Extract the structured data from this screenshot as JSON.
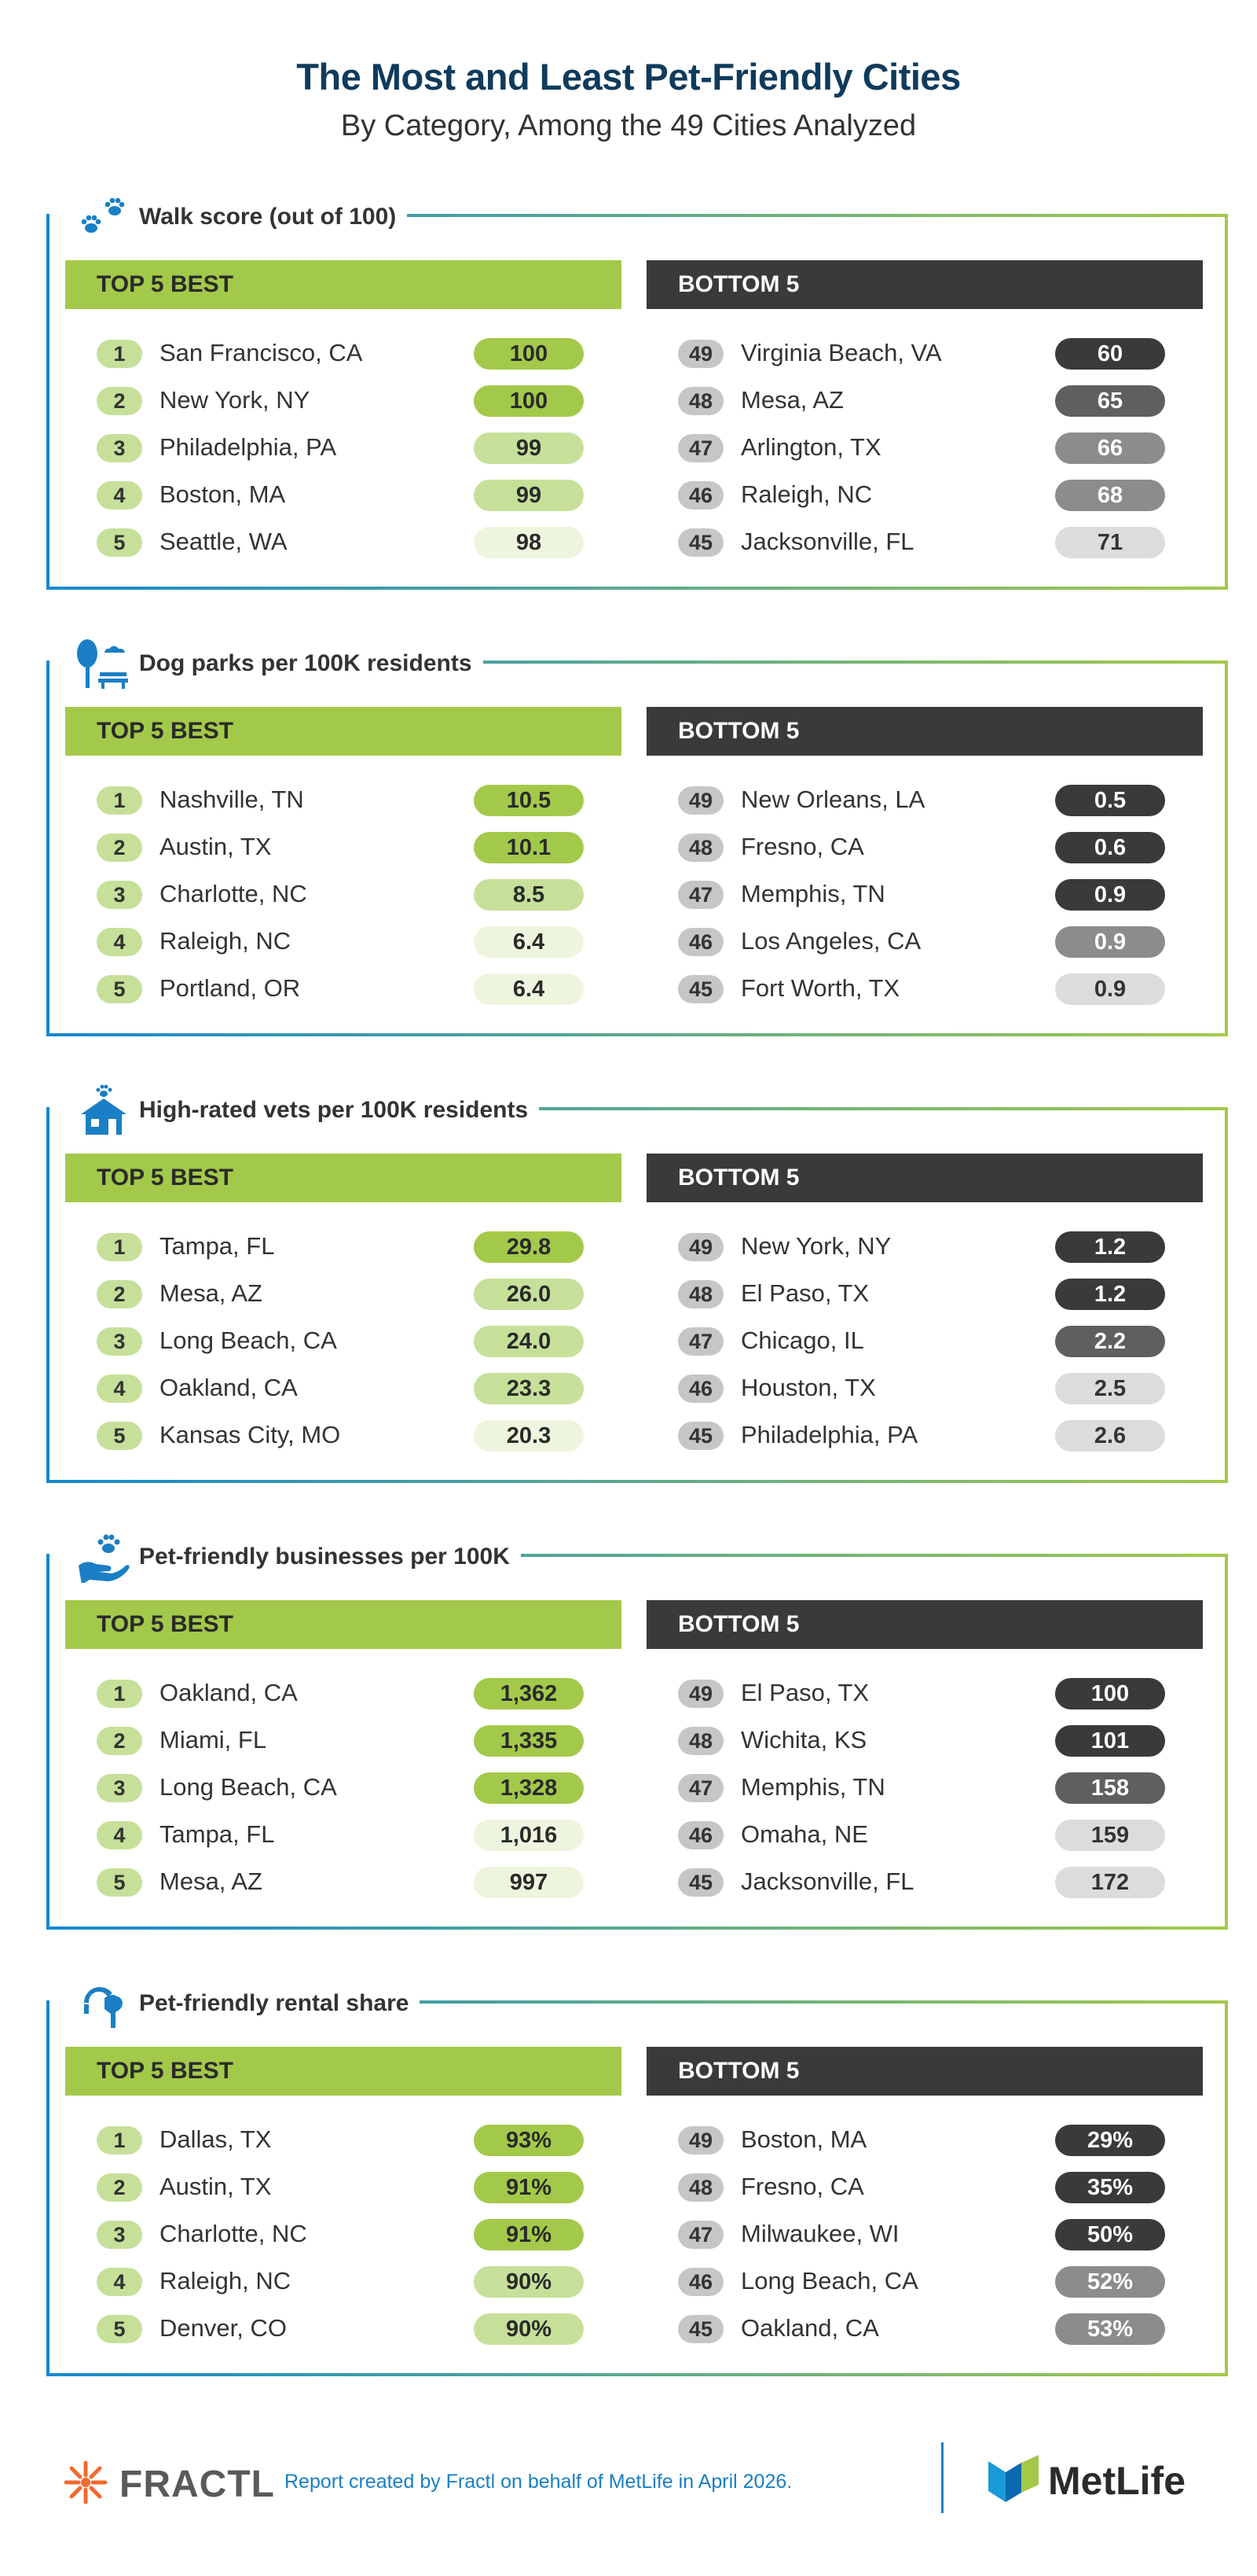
{
  "title": "The Most and Least Pet-Friendly Cities",
  "subtitle": "By Category, Among the 49 Cities Analyzed",
  "best_header": "TOP 5 BEST",
  "worst_header": "BOTTOM 5",
  "colors": {
    "best_strong": "#a3c94a",
    "best_mid": "#c6e09a",
    "best_light": "#eef5de",
    "worst_strong": "#3a3a3a",
    "worst_mid": "#5f5f5f",
    "worst_gray": "#8c8c8c",
    "worst_light": "#dcdcdc",
    "title": "#0f3b5c",
    "accent_blue": "#1a7fc4"
  },
  "sections": [
    {
      "title": "Walk score (out of 100)",
      "icon": "paw-prints-icon",
      "best": [
        {
          "rank": "1",
          "city": "San Francisco, CA",
          "value": "100",
          "shade": "best_strong"
        },
        {
          "rank": "2",
          "city": "New York, NY",
          "value": "100",
          "shade": "best_strong"
        },
        {
          "rank": "3",
          "city": "Philadelphia, PA",
          "value": "99",
          "shade": "best_mid"
        },
        {
          "rank": "4",
          "city": "Boston, MA",
          "value": "99",
          "shade": "best_mid"
        },
        {
          "rank": "5",
          "city": "Seattle, WA",
          "value": "98",
          "shade": "best_light"
        }
      ],
      "worst": [
        {
          "rank": "49",
          "city": "Virginia Beach, VA",
          "value": "60",
          "shade": "worst_strong"
        },
        {
          "rank": "48",
          "city": "Mesa, AZ",
          "value": "65",
          "shade": "worst_mid"
        },
        {
          "rank": "47",
          "city": "Arlington, TX",
          "value": "66",
          "shade": "worst_gray"
        },
        {
          "rank": "46",
          "city": "Raleigh, NC",
          "value": "68",
          "shade": "worst_gray"
        },
        {
          "rank": "45",
          "city": "Jacksonville, FL",
          "value": "71",
          "shade": "worst_light"
        }
      ]
    },
    {
      "title": "Dog parks per 100K residents",
      "icon": "park-tree-bench-icon",
      "best": [
        {
          "rank": "1",
          "city": "Nashville, TN",
          "value": "10.5",
          "shade": "best_strong"
        },
        {
          "rank": "2",
          "city": "Austin, TX",
          "value": "10.1",
          "shade": "best_strong"
        },
        {
          "rank": "3",
          "city": "Charlotte, NC",
          "value": "8.5",
          "shade": "best_mid"
        },
        {
          "rank": "4",
          "city": "Raleigh, NC",
          "value": "6.4",
          "shade": "best_light"
        },
        {
          "rank": "5",
          "city": "Portland, OR",
          "value": "6.4",
          "shade": "best_light"
        }
      ],
      "worst": [
        {
          "rank": "49",
          "city": "New Orleans, LA",
          "value": "0.5",
          "shade": "worst_strong"
        },
        {
          "rank": "48",
          "city": "Fresno, CA",
          "value": "0.6",
          "shade": "worst_strong"
        },
        {
          "rank": "47",
          "city": "Memphis, TN",
          "value": "0.9",
          "shade": "worst_strong"
        },
        {
          "rank": "46",
          "city": "Los Angeles, CA",
          "value": "0.9",
          "shade": "worst_gray"
        },
        {
          "rank": "45",
          "city": "Fort Worth, TX",
          "value": "0.9",
          "shade": "worst_light"
        }
      ]
    },
    {
      "title": "High-rated vets per 100K residents",
      "icon": "vet-clinic-icon",
      "best": [
        {
          "rank": "1",
          "city": "Tampa, FL",
          "value": "29.8",
          "shade": "best_strong"
        },
        {
          "rank": "2",
          "city": "Mesa, AZ",
          "value": "26.0",
          "shade": "best_mid"
        },
        {
          "rank": "3",
          "city": "Long Beach, CA",
          "value": "24.0",
          "shade": "best_mid"
        },
        {
          "rank": "4",
          "city": "Oakland, CA",
          "value": "23.3",
          "shade": "best_mid"
        },
        {
          "rank": "5",
          "city": "Kansas City, MO",
          "value": "20.3",
          "shade": "best_light"
        }
      ],
      "worst": [
        {
          "rank": "49",
          "city": "New York, NY",
          "value": "1.2",
          "shade": "worst_strong"
        },
        {
          "rank": "48",
          "city": "El Paso, TX",
          "value": "1.2",
          "shade": "worst_strong"
        },
        {
          "rank": "47",
          "city": "Chicago, IL",
          "value": "2.2",
          "shade": "worst_mid"
        },
        {
          "rank": "46",
          "city": "Houston, TX",
          "value": "2.5",
          "shade": "worst_light"
        },
        {
          "rank": "45",
          "city": "Philadelphia, PA",
          "value": "2.6",
          "shade": "worst_light"
        }
      ]
    },
    {
      "title": "Pet-friendly businesses per 100K",
      "icon": "hand-paw-icon",
      "best": [
        {
          "rank": "1",
          "city": "Oakland, CA",
          "value": "1,362",
          "shade": "best_strong"
        },
        {
          "rank": "2",
          "city": "Miami, FL",
          "value": "1,335",
          "shade": "best_strong"
        },
        {
          "rank": "3",
          "city": "Long Beach, CA",
          "value": "1,328",
          "shade": "best_strong"
        },
        {
          "rank": "4",
          "city": "Tampa, FL",
          "value": "1,016",
          "shade": "best_light"
        },
        {
          "rank": "5",
          "city": "Mesa, AZ",
          "value": "997",
          "shade": "best_light"
        }
      ],
      "worst": [
        {
          "rank": "49",
          "city": "El Paso, TX",
          "value": "100",
          "shade": "worst_strong"
        },
        {
          "rank": "48",
          "city": "Wichita, KS",
          "value": "101",
          "shade": "worst_strong"
        },
        {
          "rank": "47",
          "city": "Memphis, TN",
          "value": "158",
          "shade": "worst_mid"
        },
        {
          "rank": "46",
          "city": "Omaha, NE",
          "value": "159",
          "shade": "worst_light"
        },
        {
          "rank": "45",
          "city": "Jacksonville, FL",
          "value": "172",
          "shade": "worst_light"
        }
      ]
    },
    {
      "title": "Pet-friendly rental share",
      "icon": "person-dog-icon",
      "best": [
        {
          "rank": "1",
          "city": "Dallas, TX",
          "value": "93%",
          "shade": "best_strong"
        },
        {
          "rank": "2",
          "city": "Austin, TX",
          "value": "91%",
          "shade": "best_strong"
        },
        {
          "rank": "3",
          "city": "Charlotte, NC",
          "value": "91%",
          "shade": "best_strong"
        },
        {
          "rank": "4",
          "city": "Raleigh, NC",
          "value": "90%",
          "shade": "best_mid"
        },
        {
          "rank": "5",
          "city": "Denver, CO",
          "value": "90%",
          "shade": "best_mid"
        }
      ],
      "worst": [
        {
          "rank": "49",
          "city": "Boston, MA",
          "value": "29%",
          "shade": "worst_strong"
        },
        {
          "rank": "48",
          "city": "Fresno, CA",
          "value": "35%",
          "shade": "worst_strong"
        },
        {
          "rank": "47",
          "city": "Milwaukee, WI",
          "value": "50%",
          "shade": "worst_strong"
        },
        {
          "rank": "46",
          "city": "Long Beach, CA",
          "value": "52%",
          "shade": "worst_gray"
        },
        {
          "rank": "45",
          "city": "Oakland, CA",
          "value": "53%",
          "shade": "worst_gray"
        }
      ]
    }
  ],
  "footer": {
    "fractl_name": "FRACTL",
    "credit": "Report created by Fractl on behalf of MetLife in April 2026.",
    "metlife_name": "MetLife",
    "fractl_icon": "fractl-sunburst-icon",
    "metlife_icon": "metlife-logo-icon"
  }
}
